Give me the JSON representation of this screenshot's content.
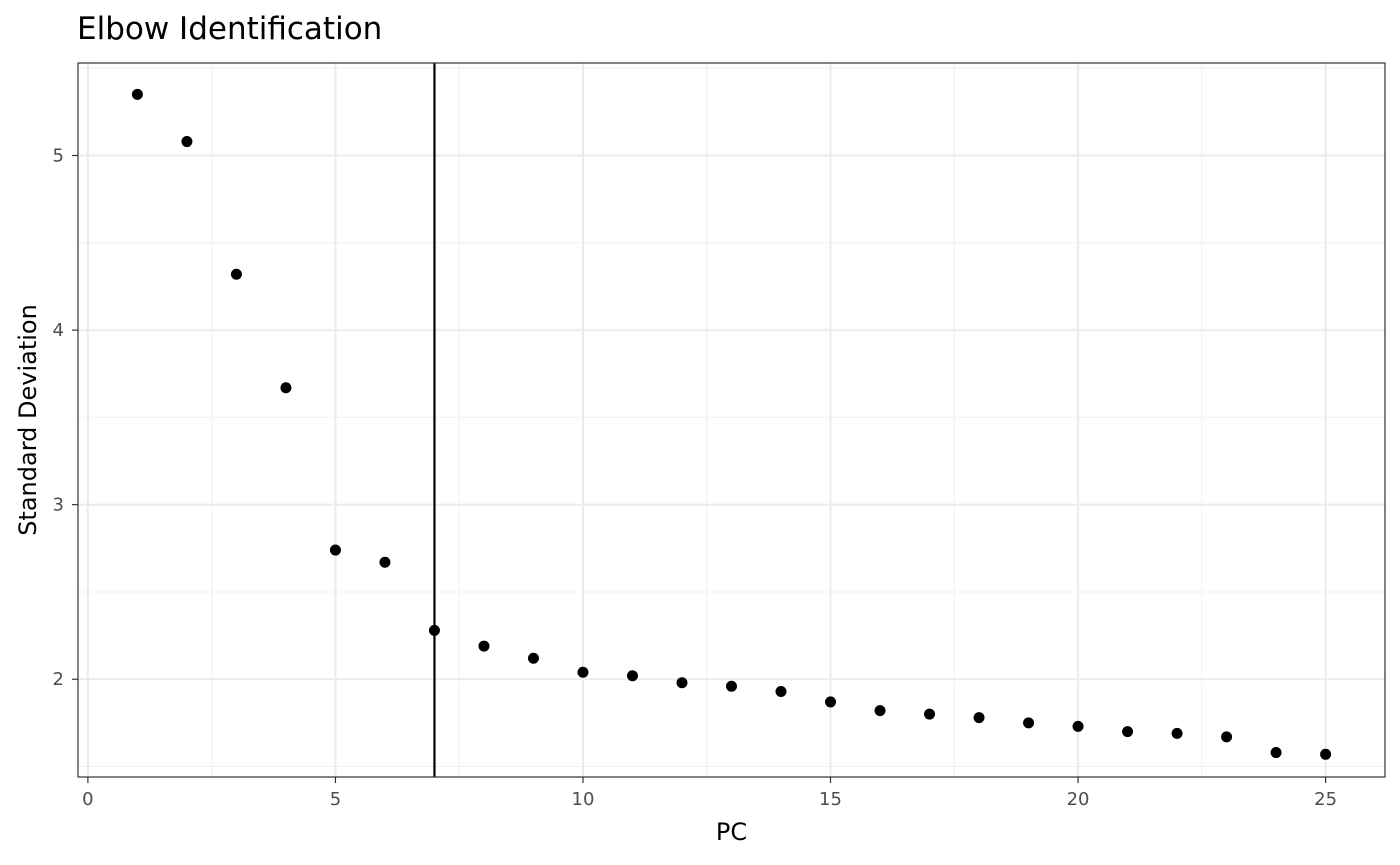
{
  "chart_data": {
    "type": "scatter",
    "title": "Elbow Identification",
    "xlabel": "PC",
    "ylabel": "Standard Deviation",
    "xlim": [
      -0.2,
      26.2
    ],
    "ylim": [
      1.44,
      5.53
    ],
    "x_ticks": [
      0,
      5,
      10,
      15,
      20,
      25
    ],
    "y_ticks": [
      2,
      3,
      4,
      5
    ],
    "grid": true,
    "theme": "bw",
    "point_color": "#000000",
    "vline": {
      "x": 7,
      "color": "#000000"
    },
    "series": [
      {
        "x": [
          1,
          2,
          3,
          4,
          5,
          6,
          7,
          8,
          9,
          10,
          11,
          12,
          13,
          14,
          15,
          16,
          17,
          18,
          19,
          20,
          21,
          22,
          23,
          24,
          25
        ],
        "y": [
          5.35,
          5.08,
          4.32,
          3.67,
          2.74,
          2.67,
          2.28,
          2.19,
          2.12,
          2.04,
          2.02,
          1.98,
          1.96,
          1.93,
          1.87,
          1.82,
          1.8,
          1.78,
          1.75,
          1.73,
          1.7,
          1.69,
          1.67,
          1.58,
          1.57
        ]
      }
    ]
  }
}
